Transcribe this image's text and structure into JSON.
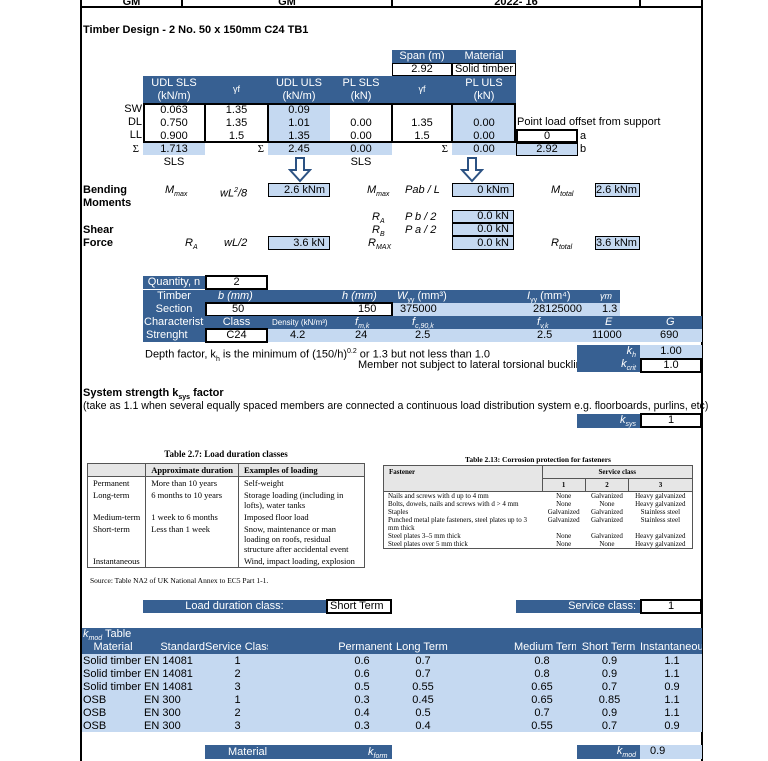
{
  "header": {
    "c1": "GM",
    "c2": "GM",
    "c3": "2022- 16",
    "c4": ""
  },
  "title": "Timber Design - 2 No. 50 x 150mm C24 TB1",
  "span": {
    "span_label": "Span (m)",
    "material_label": "Material",
    "span": "2.92",
    "material": "Solid timber"
  },
  "loads": {
    "headers": [
      "UDL SLS\n(kN/m)",
      "γf",
      "UDL ULS\n(kN/m)",
      "PL SLS\n(kN)",
      "γf",
      "PL ULS\n(kN)"
    ],
    "h1a": "UDL SLS",
    "h1b": "(kN/m)",
    "h2": "γf",
    "h3a": "UDL ULS",
    "h3b": "(kN/m)",
    "h4a": "PL SLS",
    "h4b": "(kN)",
    "h5": "γf",
    "h6a": "PL ULS",
    "h6b": "(kN)",
    "rows": [
      {
        "label": "SW",
        "v": [
          "0.063",
          "1.35",
          "0.09",
          "",
          "",
          ""
        ]
      },
      {
        "label": "DL",
        "v": [
          "0.750",
          "1.35",
          "1.01",
          "0.00",
          "1.35",
          "0.00"
        ]
      },
      {
        "label": "LL",
        "v": [
          "0.900",
          "1.5",
          "1.35",
          "0.00",
          "1.5",
          "0.00"
        ]
      }
    ],
    "sigma": "Σ",
    "sum_udl_sls": "1.713",
    "sum_udl_uls": "2.45",
    "sum_pl_sls": "0.00",
    "sum_pl_uls": "0.00",
    "sls1": "SLS",
    "sls2": "SLS",
    "offset_label": "Point load offset from support",
    "a": "0",
    "a_label": "a",
    "b": "2.92",
    "b_label": "b"
  },
  "bending": {
    "label1": "Bending",
    "label2": "Moments",
    "m1": "M",
    "m1sub": "max",
    "f1": "wL",
    "f1sup": "2",
    "f1b": "/8",
    "v1": "2.6 kNm",
    "m2": "M",
    "m2sub": "max",
    "f2": "Pab / L",
    "v2": "0 kNm",
    "mt": "M",
    "mtsub": "total",
    "vt": "2.6 kNm"
  },
  "shear": {
    "label1": "Shear",
    "label2": "Force",
    "ra": "R",
    "rasub": "A",
    "f1": "wL/2",
    "v1": "3.6 kN",
    "ra2": "R",
    "ra2sub": "A",
    "fa": "P b / 2",
    "va": "0.0 kN",
    "rb": "R",
    "rbsub": "B",
    "fb": "P a / 2",
    "vb": "0.0 kN",
    "rmax": "R",
    "rmaxsub": "MAX",
    "vmax": "0.0 kN",
    "rt": "R",
    "rtsub": "total",
    "vt": "3.6 kNm"
  },
  "section": {
    "quantity_label": "Quantity, n",
    "quantity": "2",
    "timber": "Timber",
    "section": "Section",
    "b_label": "b (mm)",
    "h_label": "h (mm)",
    "w_label": "W",
    "w_sub": "yy",
    "w_unit": " (mm³)",
    "i_label": "I",
    "i_sub": "yy",
    "i_unit": " (mm⁴)",
    "gm_label": "γm",
    "b": "50",
    "h": "150",
    "w": "375000",
    "i": "28125000",
    "gm": "1.3",
    "char": "Characteristi",
    "strength": "Strenght",
    "class_label": "Class",
    "density_label": "Density (kN/m³)",
    "fmk": "f",
    "fmk_sub": "m,k",
    "fc": "f",
    "fc_sub": "c,90,k",
    "fv": "f",
    "fv_sub": "v,k",
    "e_label": "E",
    "g_label": "G",
    "class": "C24",
    "density": "4.2",
    "fmk_v": "24",
    "fc_v": "2.5",
    "fv_v": "2.5",
    "e": "11000",
    "g": "690",
    "depth_text": "Depth factor, k",
    "depth_sub": "h",
    "depth_text2": " is the minimum of (150/h)",
    "depth_sup": "0.2",
    "depth_text3": " or 1.3 but not less than 1.0",
    "kh": "k",
    "kh_sub": "h",
    "kh_v": "1.00",
    "ltb": "Member not subject to lateral torsional buckling",
    "kcrit": "k",
    "kcrit_sub": "crit",
    "kcrit_v": "1.0"
  },
  "ksys": {
    "title": "System strength k",
    "title_sub": "sys",
    "title2": " factor",
    "note": "(take as 1.1 when several equally spaced members are connected  a continuous load distribution system e.g. floorboards, purlins, etc)",
    "label": "k",
    "label_sub": "sys",
    "value": "1"
  },
  "table27": {
    "title": "Table 2.7: Load duration classes",
    "headers": [
      "",
      "Approximate duration",
      "Examples of loading"
    ],
    "rows": [
      [
        "Permanent",
        "More than 10 years",
        "Self-weight"
      ],
      [
        "Long-term",
        "6 months to 10 years",
        "Storage loading (including in lofts), water tanks"
      ],
      [
        "Medium-term",
        "1 week to 6 months",
        "Imposed floor load"
      ],
      [
        "Short-term",
        "Less than 1 week",
        "Snow, maintenance or man loading on roofs, residual structure after accidental event"
      ],
      [
        "Instantaneous",
        "",
        "Wind, impact loading, explosion"
      ]
    ],
    "source": "Source: Table NA2 of UK National Annex to EC5 Part 1-1."
  },
  "table213": {
    "title": "Table 2.13: Corrosion protection for fasteners",
    "fastener": "Fastener",
    "service": "Service class",
    "classes": [
      "1",
      "2",
      "3"
    ],
    "rows": [
      [
        "Nails and screws with d up to 4 mm",
        "None",
        "Galvanized",
        "Heavy galvanized"
      ],
      [
        "Bolts, dowels, nails and screws with d > 4 mm",
        "None",
        "None",
        "Heavy galvanized"
      ],
      [
        "Staples",
        "Galvanized",
        "Galvanized",
        "Stainless steel"
      ],
      [
        "Punched metal plate fasteners, steel plates up to 3 mm thick",
        "Galvanized",
        "Galvanized",
        "Stainless steel"
      ],
      [
        "Steel plates 3–5 mm thick",
        "None",
        "Galvanized",
        "Heavy galvanized"
      ],
      [
        "Steel plates over 5 mm thick",
        "None",
        "None",
        "Heavy galvanized"
      ]
    ]
  },
  "duration": {
    "label": "Load duration class:",
    "value": "Short Term",
    "service_label": "Service class:",
    "service_value": "1"
  },
  "kmod": {
    "title": "k",
    "title_sub": "mod",
    "title2": " Table",
    "headers": [
      "Material",
      "Standard",
      "Service Class",
      "Permanent",
      "Long Term",
      "Medium Term",
      "Short Term",
      "Instantaneous"
    ],
    "rows": [
      [
        "Solid timber",
        "EN 14081",
        "1",
        "0.6",
        "0.7",
        "0.8",
        "0.9",
        "1.1"
      ],
      [
        "Solid timber",
        "EN 14081",
        "2",
        "0.6",
        "0.7",
        "0.8",
        "0.9",
        "1.1"
      ],
      [
        "Solid timber",
        "EN 14081",
        "3",
        "0.5",
        "0.55",
        "0.65",
        "0.7",
        "0.9"
      ],
      [
        "OSB",
        "EN 300",
        "1",
        "0.3",
        "0.45",
        "0.65",
        "0.85",
        "1.1"
      ],
      [
        "OSB",
        "EN 300",
        "2",
        "0.4",
        "0.5",
        "0.7",
        "0.9",
        "1.1"
      ],
      [
        "OSB",
        "EN 300",
        "3",
        "0.3",
        "0.4",
        "0.55",
        "0.7",
        "0.9"
      ]
    ]
  },
  "bottom": {
    "material": "Material",
    "kform": "k",
    "kform_sub": "form",
    "kmod": "k",
    "kmod_sub": "mod",
    "kmod_v": "0.9"
  },
  "colors": {
    "blue": "#376092",
    "light_blue": "#c5d9f1"
  }
}
